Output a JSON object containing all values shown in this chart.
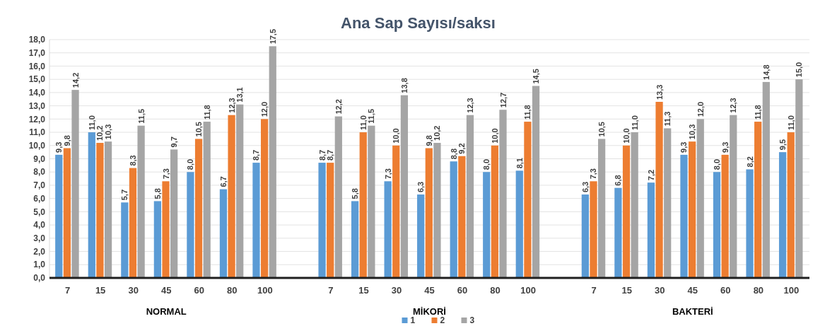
{
  "chart_data": {
    "type": "bar",
    "title": "Ana Sap Sayısı/saksı",
    "categories": [
      "7",
      "15",
      "30",
      "45",
      "60",
      "80",
      "100",
      null,
      "7",
      "15",
      "30",
      "45",
      "60",
      "80",
      "100",
      null,
      "7",
      "15",
      "30",
      "45",
      "60",
      "80",
      "100"
    ],
    "annotations": [
      "NORMAL",
      "MİKORİ",
      "BAKTERİ"
    ],
    "series": [
      {
        "name": "1",
        "color": "#5b9bd5",
        "values": [
          9.3,
          11.0,
          5.7,
          5.8,
          8.0,
          6.7,
          8.7,
          null,
          8.7,
          5.8,
          7.3,
          6.3,
          8.8,
          8.0,
          8.1,
          null,
          6.3,
          6.8,
          7.2,
          9.3,
          8.0,
          8.2,
          9.5
        ],
        "value_labels": [
          "9,3",
          "11,0",
          "5,7",
          "5,8",
          "8,0",
          "6,7",
          "8,7",
          null,
          "8,7",
          "5,8",
          "7,3",
          "6,3",
          "8,8",
          "8,0",
          "8,1",
          null,
          "6,3",
          "6,8",
          "7,2",
          "9,3",
          "8,0",
          "8,2",
          "9,5"
        ]
      },
      {
        "name": "2",
        "color": "#ed7d31",
        "values": [
          9.8,
          10.2,
          8.3,
          7.3,
          10.5,
          12.3,
          12.0,
          null,
          8.7,
          11.0,
          10.0,
          9.8,
          9.2,
          10.0,
          11.8,
          null,
          7.3,
          10.0,
          13.3,
          10.3,
          9.3,
          11.8,
          11.0
        ],
        "value_labels": [
          "9,8",
          "10,2",
          "8,3",
          "7,3",
          "10,5",
          "12,3",
          "12,0",
          null,
          "8,7",
          "11,0",
          "10,0",
          "9,8",
          "9,2",
          "10,0",
          "11,8",
          null,
          "7,3",
          "10,0",
          "13,3",
          "10,3",
          "9,3",
          "11,8",
          "11,0"
        ]
      },
      {
        "name": "3",
        "color": "#a5a5a5",
        "values": [
          14.2,
          10.3,
          11.5,
          9.7,
          11.8,
          13.1,
          17.5,
          null,
          12.2,
          11.5,
          13.8,
          10.2,
          12.3,
          12.7,
          14.5,
          null,
          10.5,
          11.0,
          11.3,
          12.0,
          12.3,
          14.8,
          15.0
        ],
        "value_labels": [
          "14,2",
          "10,3",
          "11,5",
          "9,7",
          "11,8",
          "13,1",
          "17,5",
          null,
          "12,2",
          "11,5",
          "13,8",
          "10,2",
          "12,3",
          "12,7",
          "14,5",
          null,
          "10,5",
          "11,0",
          "11,3",
          "12,0",
          "12,3",
          "14,8",
          "15,0"
        ]
      }
    ],
    "ylim": [
      0,
      18
    ],
    "yticks": [
      {
        "value": 0,
        "label": "0,0"
      },
      {
        "value": 1,
        "label": "1,0"
      },
      {
        "value": 2,
        "label": "2,0"
      },
      {
        "value": 3,
        "label": "3,0"
      },
      {
        "value": 4,
        "label": "4,0"
      },
      {
        "value": 5,
        "label": "5,0"
      },
      {
        "value": 6,
        "label": "6,0"
      },
      {
        "value": 7,
        "label": "7,0"
      },
      {
        "value": 8,
        "label": "8,0"
      },
      {
        "value": 9,
        "label": "9,0"
      },
      {
        "value": 10,
        "label": "10,0"
      },
      {
        "value": 11,
        "label": "11,0"
      },
      {
        "value": 12,
        "label": "12,0"
      },
      {
        "value": 13,
        "label": "13,0"
      },
      {
        "value": 14,
        "label": "14,0"
      },
      {
        "value": 15,
        "label": "15,0"
      },
      {
        "value": 16,
        "label": "16,0"
      },
      {
        "value": 17,
        "label": "17,0"
      },
      {
        "value": 18,
        "label": "18,0"
      }
    ],
    "grid": "y",
    "legend": "bottom"
  }
}
